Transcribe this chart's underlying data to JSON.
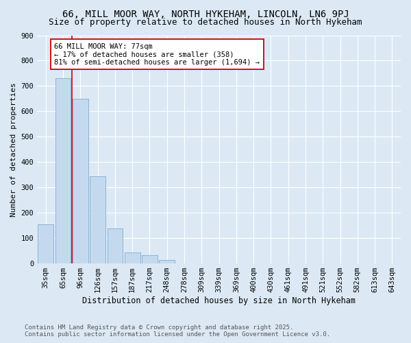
{
  "title1": "66, MILL MOOR WAY, NORTH HYKEHAM, LINCOLN, LN6 9PJ",
  "title2": "Size of property relative to detached houses in North Hykeham",
  "xlabel": "Distribution of detached houses by size in North Hykeham",
  "ylabel": "Number of detached properties",
  "categories": [
    "35sqm",
    "65sqm",
    "96sqm",
    "126sqm",
    "157sqm",
    "187sqm",
    "217sqm",
    "248sqm",
    "278sqm",
    "309sqm",
    "339sqm",
    "369sqm",
    "400sqm",
    "430sqm",
    "461sqm",
    "491sqm",
    "521sqm",
    "552sqm",
    "582sqm",
    "613sqm",
    "643sqm"
  ],
  "values": [
    155,
    730,
    650,
    345,
    138,
    43,
    33,
    15,
    0,
    0,
    0,
    0,
    0,
    0,
    0,
    0,
    0,
    0,
    0,
    0,
    0
  ],
  "bar_color": "#c5d9ee",
  "bar_edge_color": "#7aadd4",
  "vline_x": 1.5,
  "vline_color": "#cc0000",
  "annotation_text": "66 MILL MOOR WAY: 77sqm\n← 17% of detached houses are smaller (358)\n81% of semi-detached houses are larger (1,694) →",
  "annotation_box_color": "#ffffff",
  "annotation_box_edge": "#cc0000",
  "ylim": [
    0,
    900
  ],
  "yticks": [
    0,
    100,
    200,
    300,
    400,
    500,
    600,
    700,
    800,
    900
  ],
  "bg_color": "#dce9f5",
  "plot_bg_color": "#dce9f5",
  "footer": "Contains HM Land Registry data © Crown copyright and database right 2025.\nContains public sector information licensed under the Open Government Licence v3.0.",
  "title1_fontsize": 10,
  "title2_fontsize": 9,
  "xlabel_fontsize": 8.5,
  "ylabel_fontsize": 8,
  "tick_fontsize": 7.5,
  "annotation_fontsize": 7.5,
  "footer_fontsize": 6.5
}
